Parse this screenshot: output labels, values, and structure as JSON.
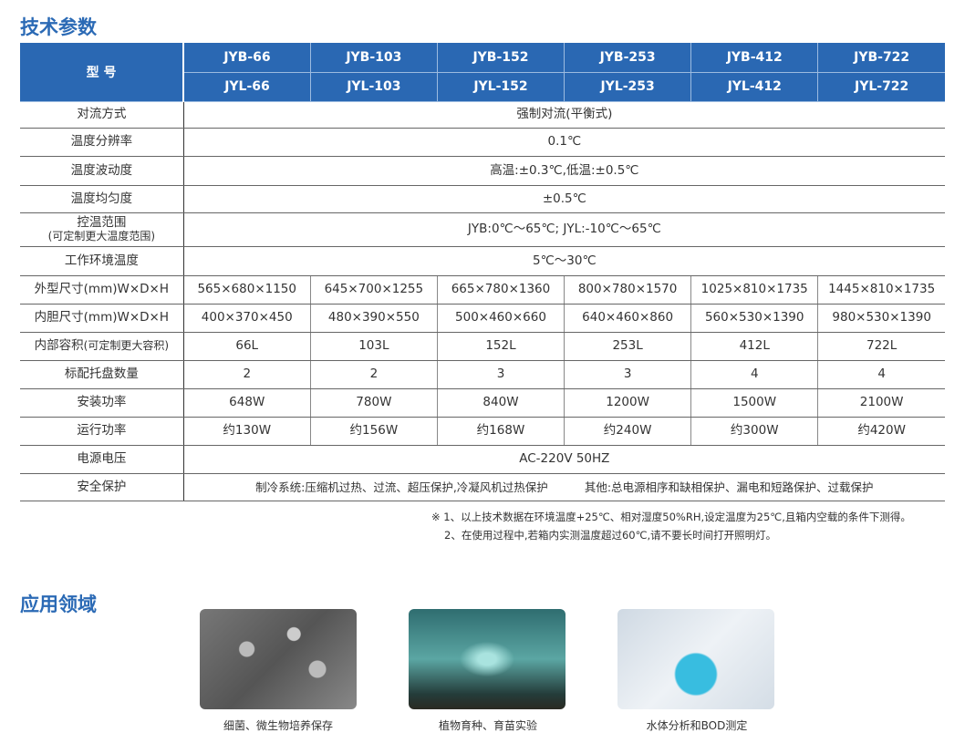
{
  "spec_title": "技术参数",
  "model_label": "型 号",
  "models_jyb": [
    "JYB-66",
    "JYB-103",
    "JYB-152",
    "JYB-253",
    "JYB-412",
    "JYB-722"
  ],
  "models_jyl": [
    "JYL-66",
    "JYL-103",
    "JYL-152",
    "JYL-253",
    "JYL-412",
    "JYL-722"
  ],
  "merged_rows": [
    {
      "label": "对流方式",
      "value": "强制对流(平衡式)"
    },
    {
      "label": "温度分辨率",
      "value": "0.1℃"
    },
    {
      "label": "温度波动度",
      "value": "高温:±0.3℃,低温:±0.5℃"
    },
    {
      "label": "温度均匀度",
      "value": "±0.5℃"
    },
    {
      "label": "控温范围",
      "sublabel": "(可定制更大温度范围)",
      "value": "JYB:0℃～65℃; JYL:-10℃～65℃"
    },
    {
      "label": "工作环境温度",
      "value": "5℃～30℃"
    }
  ],
  "split_rows": [
    {
      "label": "外型尺寸(mm)W×D×H",
      "values": [
        "565×680×1150",
        "645×700×1255",
        "665×780×1360",
        "800×780×1570",
        "1025×810×1735",
        "1445×810×1735"
      ]
    },
    {
      "label": "内胆尺寸(mm)W×D×H",
      "values": [
        "400×370×450",
        "480×390×550",
        "500×460×660",
        "640×460×860",
        "560×530×1390",
        "980×530×1390"
      ]
    },
    {
      "label": "内部容积",
      "label_small": "(可定制更大容积)",
      "values": [
        "66L",
        "103L",
        "152L",
        "253L",
        "412L",
        "722L"
      ]
    },
    {
      "label": "标配托盘数量",
      "values": [
        "2",
        "2",
        "3",
        "3",
        "4",
        "4"
      ]
    },
    {
      "label": "安装功率",
      "values": [
        "648W",
        "780W",
        "840W",
        "1200W",
        "1500W",
        "2100W"
      ]
    },
    {
      "label": "运行功率",
      "values": [
        "约130W",
        "约156W",
        "约168W",
        "约240W",
        "约300W",
        "约420W"
      ]
    }
  ],
  "power": {
    "label": "电源电压",
    "value": "AC-220V 50HZ"
  },
  "safety": {
    "label": "安全保护",
    "refrigeration": "制冷系统:压缩机过热、过流、超压保护,冷凝风机过热保护",
    "other": "其他:总电源相序和缺相保护、漏电和短路保护、过载保护"
  },
  "notes": [
    "※ 1、以上技术数据在环境温度+25℃、相对湿度50%RH,设定温度为25℃,且箱内空载的条件下测得。",
    "2、在使用过程中,若箱内实测温度超过60℃,请不要长时间打开照明灯。"
  ],
  "app_title": "应用领域",
  "applications": [
    {
      "caption": "细菌、微生物培养保存"
    },
    {
      "caption": "植物育种、育苗实验"
    },
    {
      "caption": "水体分析和BOD测定"
    }
  ],
  "colors": {
    "accent": "#2a68b3"
  }
}
